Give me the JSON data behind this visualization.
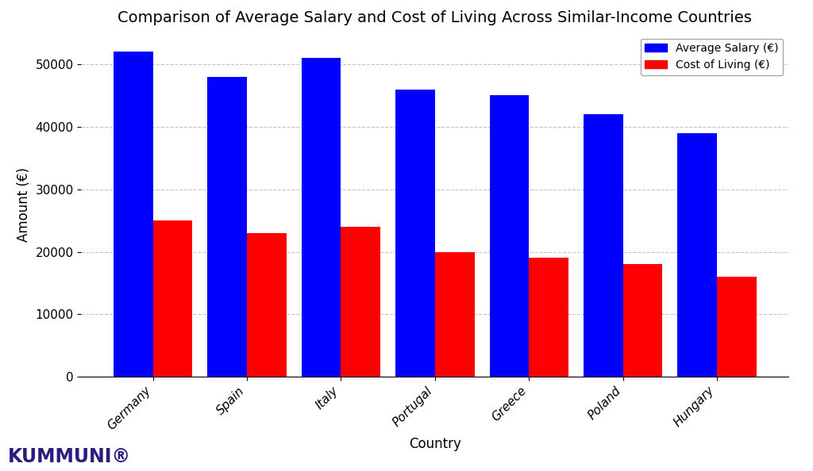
{
  "title": "Comparison of Average Salary and Cost of Living Across Similar-Income Countries",
  "countries": [
    "Germany",
    "Spain",
    "Italy",
    "Portugal",
    "Greece",
    "Poland",
    "Hungary"
  ],
  "avg_salary": [
    52000,
    48000,
    51000,
    46000,
    45000,
    42000,
    39000
  ],
  "cost_of_living": [
    25000,
    23000,
    24000,
    20000,
    19000,
    18000,
    16000
  ],
  "salary_color": "#0000ff",
  "col_color": "#ff0000",
  "xlabel": "Country",
  "ylabel": "Amount (€)",
  "ylim": [
    0,
    55000
  ],
  "yticks": [
    0,
    10000,
    20000,
    30000,
    40000,
    50000
  ],
  "legend_salary": "Average Salary (€)",
  "legend_col": "Cost of Living (€)",
  "background_color": "#ffffff",
  "bar_width": 0.42,
  "title_fontsize": 14,
  "axis_label_fontsize": 12,
  "tick_fontsize": 11,
  "legend_fontsize": 10,
  "watermark_text": "KUMMUNI®",
  "watermark_color": "#2d1b7e"
}
